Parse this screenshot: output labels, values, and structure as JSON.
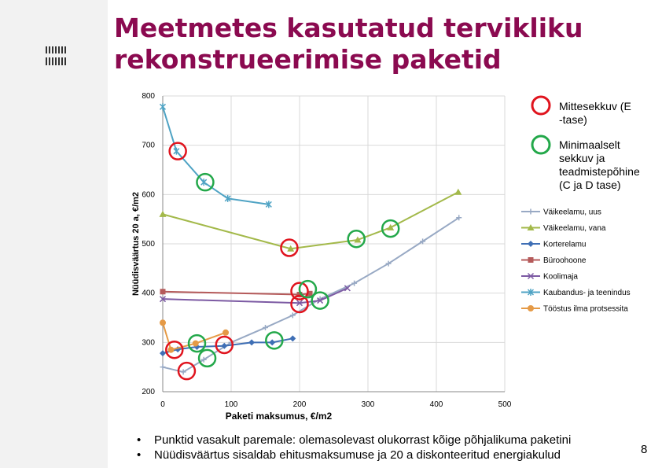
{
  "slide": {
    "title_line1": "Meetmetes kasutatud tervikliku",
    "title_line2": "rekonstrueerimise paketid",
    "bullets": [
      "Punktid vasakult paremale: olemasolevast olukorrast kõige põhjalikuma paketini",
      "Nüüdisväärtus sisaldab ehitusmaksumuse ja 20 a diskonteeritud energiakulud"
    ],
    "page_number": "8",
    "logo": "institution-logo-icon"
  },
  "chart_data": {
    "type": "line",
    "title": "",
    "xlabel": "Paketi maksumus, €/m2",
    "ylabel": "Nüüdisväärtus 20 a, €/m2",
    "xlim": [
      0,
      500
    ],
    "ylim": [
      200,
      800
    ],
    "x_ticks": [
      0,
      100,
      200,
      300,
      400,
      500
    ],
    "y_ticks": [
      200,
      300,
      400,
      500,
      600,
      700,
      800
    ],
    "grid": true,
    "series": [
      {
        "name": "Väikeelamu, uus",
        "color": "#98a9c4",
        "marker": "plus",
        "points": [
          [
            0,
            250
          ],
          [
            30,
            240
          ],
          [
            60,
            265
          ],
          [
            100,
            300
          ],
          [
            150,
            330
          ],
          [
            190,
            355
          ],
          [
            230,
            388
          ],
          [
            280,
            420
          ],
          [
            330,
            460
          ],
          [
            380,
            505
          ],
          [
            433,
            553
          ]
        ]
      },
      {
        "name": "Väikeelamu, vana",
        "color": "#a3b94a",
        "marker": "triangle",
        "points": [
          [
            0,
            560
          ],
          [
            187,
            490
          ],
          [
            285,
            508
          ],
          [
            333,
            533
          ],
          [
            432,
            605
          ]
        ]
      },
      {
        "name": "Korterelamu",
        "color": "#3f6fb5",
        "marker": "diamond",
        "points": [
          [
            0,
            278
          ],
          [
            22,
            286
          ],
          [
            50,
            291
          ],
          [
            90,
            293
          ],
          [
            130,
            300
          ],
          [
            160,
            300
          ],
          [
            190,
            308
          ]
        ]
      },
      {
        "name": "Büroohoone",
        "color": "#b55a5a",
        "marker": "square",
        "points": [
          [
            0,
            403
          ],
          [
            200,
            397
          ],
          [
            215,
            399
          ]
        ]
      },
      {
        "name": "Koolimaja",
        "color": "#7c5aa3",
        "marker": "x",
        "points": [
          [
            0,
            388
          ],
          [
            200,
            380
          ],
          [
            230,
            385
          ],
          [
            270,
            410
          ]
        ]
      },
      {
        "name": "Kaubandus- ja teenindus",
        "color": "#4fa3c4",
        "marker": "star",
        "points": [
          [
            0,
            778
          ],
          [
            20,
            688
          ],
          [
            60,
            625
          ],
          [
            95,
            592
          ],
          [
            155,
            580
          ]
        ]
      },
      {
        "name": "Tööstus ilma protsessita",
        "color": "#e59a46",
        "marker": "circle",
        "points": [
          [
            0,
            340
          ],
          [
            12,
            285
          ],
          [
            48,
            298
          ],
          [
            92,
            320
          ]
        ]
      }
    ],
    "markers_legend": [
      {
        "label": "Mittesekkuv (E -tase)",
        "color": "#e0141e"
      },
      {
        "label": "Minimaalselt sekkuv ja teadmistepõhine (C ja D tase)",
        "color": "#23a84a"
      }
    ],
    "annotations": {
      "red_circles": [
        [
          22,
          688
        ],
        [
          185,
          492
        ],
        [
          17,
          285
        ],
        [
          90,
          295
        ],
        [
          35,
          242
        ],
        [
          200,
          404
        ],
        [
          200,
          378
        ]
      ],
      "green_circles": [
        [
          62,
          625
        ],
        [
          283,
          510
        ],
        [
          333,
          531
        ],
        [
          50,
          298
        ],
        [
          163,
          304
        ],
        [
          65,
          268
        ],
        [
          212,
          408
        ],
        [
          230,
          385
        ]
      ]
    }
  }
}
